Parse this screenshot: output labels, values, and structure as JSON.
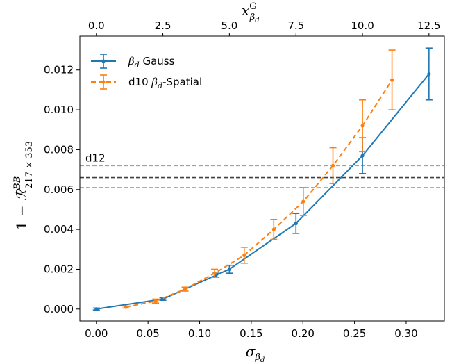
{
  "chart_data": {
    "type": "line",
    "xlabel": "σ_βd",
    "ylabel": "1 − R^BB_217×353",
    "top_xlabel": "x^G_βd",
    "xlim": [
      -0.016,
      0.337
    ],
    "ylim": [
      -0.0006,
      0.0137
    ],
    "x_ticks": [
      "0.00",
      "0.05",
      "0.10",
      "0.15",
      "0.20",
      "0.25",
      "0.30"
    ],
    "y_ticks": [
      "0.000",
      "0.002",
      "0.004",
      "0.006",
      "0.008",
      "0.010",
      "0.012"
    ],
    "top_x_ticks": [
      "0.0",
      "2.5",
      "5.0",
      "7.5",
      "10.0",
      "12.5"
    ],
    "top_x_tick_positions": [
      0.0,
      0.0644,
      0.1288,
      0.1933,
      0.2577,
      0.3221
    ],
    "grid": false,
    "legend_position": "top-left",
    "series": [
      {
        "name": "βd Gauss",
        "color": "#1f77b4",
        "style": "solid",
        "x": [
          0.0,
          0.0644,
          0.1159,
          0.1288,
          0.1933,
          0.2577,
          0.3221
        ],
        "y": [
          0.0,
          0.0005,
          0.0017,
          0.002,
          0.0043,
          0.0077,
          0.0118
        ],
        "err": [
          5e-05,
          6e-05,
          0.0001,
          0.0002,
          0.0005,
          0.0009,
          0.0013
        ]
      },
      {
        "name": "d10 βd-Spatial",
        "color": "#ff7f0e",
        "style": "dashed",
        "x": [
          0.0286,
          0.0573,
          0.0859,
          0.1145,
          0.1432,
          0.1718,
          0.2004,
          0.2291,
          0.2577,
          0.2863
        ],
        "y": [
          0.0001,
          0.0004,
          0.001,
          0.0018,
          0.0027,
          0.004,
          0.0054,
          0.0072,
          0.0092,
          0.0115
        ],
        "err": [
          5e-05,
          0.0001,
          0.0001,
          0.0002,
          0.0004,
          0.0005,
          0.0007,
          0.0009,
          0.0013,
          0.0015
        ]
      }
    ],
    "reference_lines": [
      {
        "y": 0.0072,
        "color": "#a0a0a0",
        "label": "d12"
      },
      {
        "y": 0.0066,
        "color": "#404040",
        "label": ""
      },
      {
        "y": 0.0061,
        "color": "#a0a0a0",
        "label": ""
      }
    ]
  }
}
